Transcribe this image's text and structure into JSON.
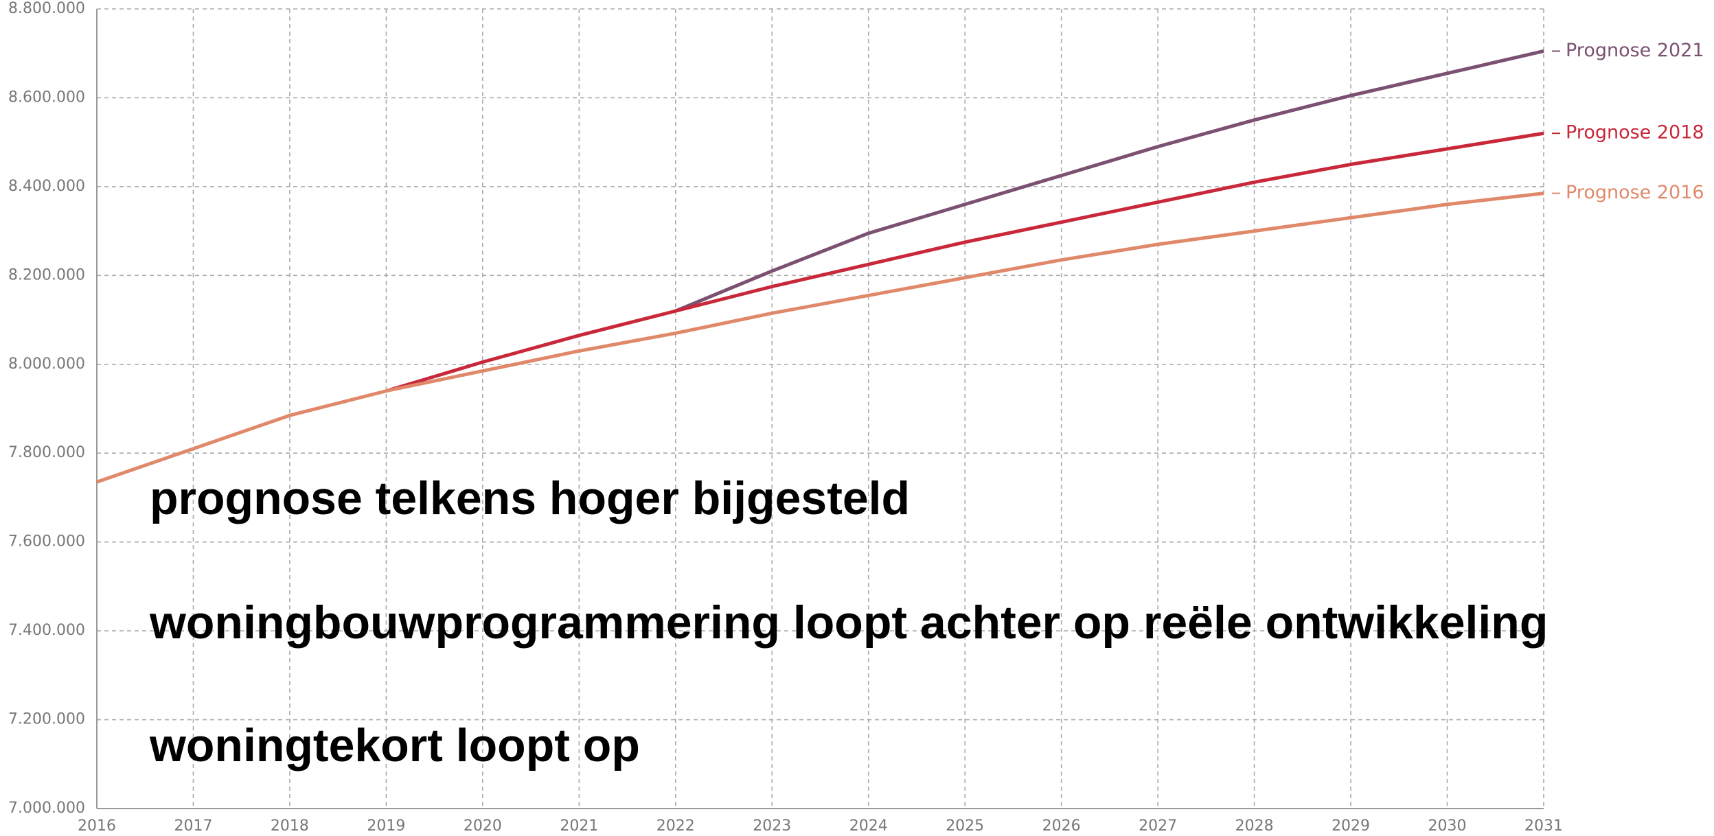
{
  "chart_data": {
    "type": "line",
    "x": [
      2016,
      2017,
      2018,
      2019,
      2020,
      2021,
      2022,
      2023,
      2024,
      2025,
      2026,
      2027,
      2028,
      2029,
      2030,
      2031
    ],
    "series": [
      {
        "name": "Prognose 2021",
        "color": "#7b5070",
        "values": [
          null,
          null,
          null,
          null,
          null,
          null,
          8120000,
          8210000,
          8295000,
          8360000,
          8425000,
          8490000,
          8550000,
          8605000,
          8655000,
          8705000
        ]
      },
      {
        "name": "Prognose 2018",
        "color": "#c8283a",
        "values": [
          null,
          null,
          null,
          7940000,
          8005000,
          8065000,
          8120000,
          8175000,
          8225000,
          8275000,
          8320000,
          8365000,
          8410000,
          8450000,
          8485000,
          8520000
        ]
      },
      {
        "name": "Prognose 2016",
        "color": "#e0896a",
        "values": [
          7735000,
          7810000,
          7885000,
          7940000,
          7985000,
          8030000,
          8070000,
          8115000,
          8155000,
          8195000,
          8235000,
          8270000,
          8300000,
          8330000,
          8360000,
          8385000
        ]
      }
    ],
    "xlim": [
      2016,
      2031
    ],
    "xticks": [
      2016,
      2017,
      2018,
      2019,
      2020,
      2021,
      2022,
      2023,
      2024,
      2025,
      2026,
      2027,
      2028,
      2029,
      2030,
      2031
    ],
    "ylim": [
      7000000,
      8800000
    ],
    "yticks": [
      {
        "value": 7000000,
        "label": "7.000.000"
      },
      {
        "value": 7200000,
        "label": "7.200.000"
      },
      {
        "value": 7400000,
        "label": "7.400.000"
      },
      {
        "value": 7600000,
        "label": "7.600.000"
      },
      {
        "value": 7800000,
        "label": "7.800.000"
      },
      {
        "value": 8000000,
        "label": "8.000.000"
      },
      {
        "value": 8200000,
        "label": "8.200.000"
      },
      {
        "value": 8400000,
        "label": "8.400.000"
      },
      {
        "value": 8600000,
        "label": "8.600.000"
      },
      {
        "value": 8800000,
        "label": "8.800.000"
      }
    ],
    "grid": true,
    "annotations": [
      "prognose telkens hoger bijgesteld",
      "woningbouwprogrammering loopt achter op reële ontwikkeling",
      "woningtekort loopt op"
    ]
  }
}
